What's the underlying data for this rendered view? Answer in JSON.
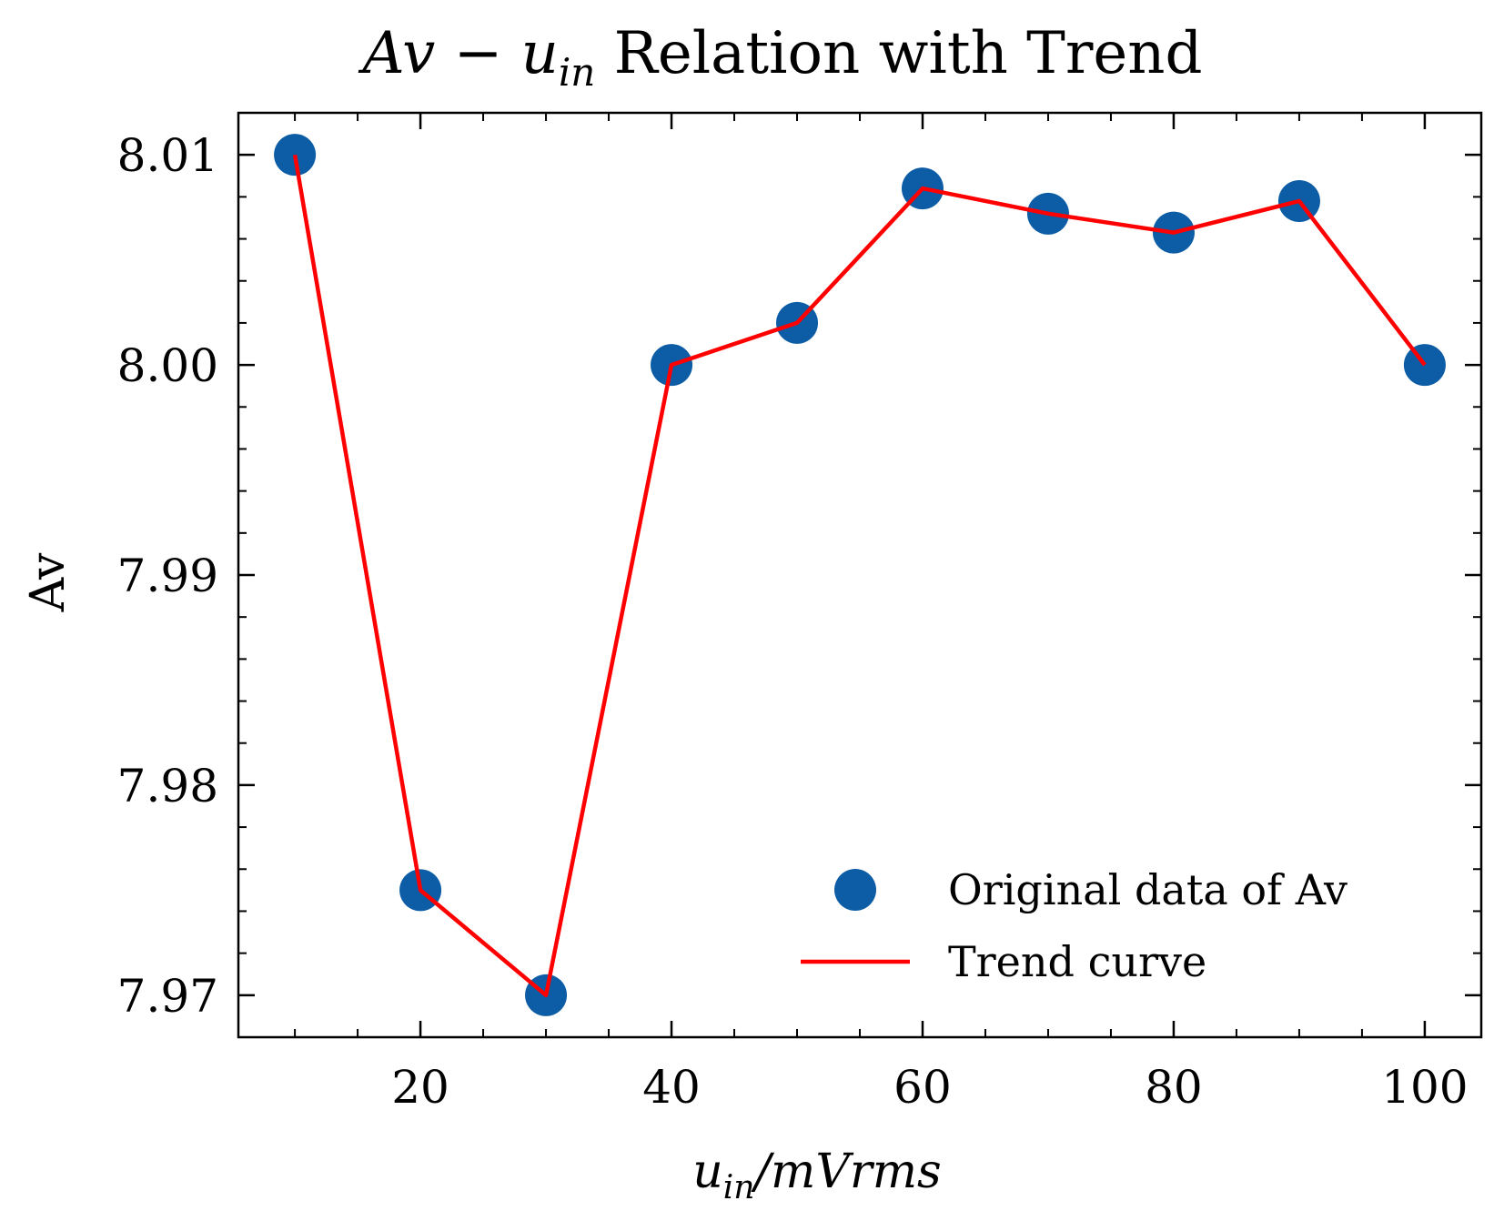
{
  "chart_data": {
    "type": "line",
    "title": "Av − u_in Relation with Trend",
    "title_parts": {
      "main": "Av − u",
      "sub": "in",
      "rest": " Relation with Trend"
    },
    "xlabel": "u_in/mVrms",
    "xlabel_parts": {
      "main": "u",
      "sub": "in",
      "rest": "/mVrms"
    },
    "ylabel": "Av",
    "xlim": [
      5.5,
      104.5
    ],
    "ylim": [
      7.968,
      8.012
    ],
    "x_ticks": [
      20,
      40,
      60,
      80,
      100
    ],
    "x_tick_labels": [
      "20",
      "40",
      "60",
      "80",
      "100"
    ],
    "y_ticks": [
      7.97,
      7.98,
      7.99,
      8.0,
      8.01
    ],
    "y_tick_labels": [
      "7.97",
      "7.98",
      "7.99",
      "8.00",
      "8.01"
    ],
    "grid": false,
    "legend_position": "lower-right",
    "series": [
      {
        "name": "Original data of Av",
        "kind": "scatter",
        "color": "#0C5DA5",
        "x": [
          10,
          20,
          30,
          40,
          50,
          60,
          70,
          80,
          90,
          100
        ],
        "y": [
          8.01,
          7.975,
          7.97,
          8.0,
          8.002,
          8.0084,
          8.0072,
          8.0063,
          8.0078,
          8.0
        ]
      },
      {
        "name": "Trend curve",
        "kind": "line",
        "color": "#FF0000",
        "x": [
          10,
          20,
          30,
          40,
          50,
          60,
          70,
          80,
          90,
          100
        ],
        "y": [
          8.01,
          7.975,
          7.97,
          8.0,
          8.002,
          8.0084,
          8.0072,
          8.0063,
          8.0078,
          8.0
        ]
      }
    ]
  }
}
